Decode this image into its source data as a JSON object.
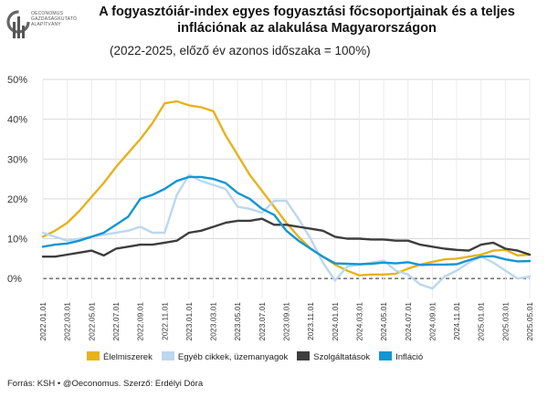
{
  "logo": {
    "lines": [
      "OECONOMUS",
      "GAZDASÁGKUTATÓ",
      "ALAPÍTVÁNY"
    ]
  },
  "header": {
    "title_line1": "A fogyasztóiár-index egyes fogyasztási főcsoportjainak és a teljes",
    "title_line2": "inflációnak az alakulása Magyarországon",
    "subtitle": "(2022-2025, előző év azonos időszaka = 100%)"
  },
  "footer": {
    "source": "Forrás: KSH • @Oeconomus. Szerző: Erdélyi Dóra"
  },
  "chart_data": {
    "type": "line",
    "title": "A fogyasztóiár-index egyes fogyasztási főcsoportjainak és a teljes inflációnak az alakulása Magyarországon",
    "subtitle": "(2022-2025, előző év azonos időszaka = 100%)",
    "xlabel": "",
    "ylabel": "",
    "ylim": [
      -5,
      50
    ],
    "yticks": [
      0,
      10,
      20,
      30,
      40,
      50
    ],
    "ytick_labels": [
      "0%",
      "10%",
      "20%",
      "30%",
      "40%",
      "50%"
    ],
    "grid": true,
    "legend_position": "bottom",
    "x": [
      "2022.01.01",
      "2022.02.01",
      "2022.03.01",
      "2022.04.01",
      "2022.05.01",
      "2022.06.01",
      "2022.07.01",
      "2022.08.01",
      "2022.09.01",
      "2022.10.01",
      "2022.11.01",
      "2022.12.01",
      "2023.01.01",
      "2023.02.01",
      "2023.03.01",
      "2023.04.01",
      "2023.05.01",
      "2023.06.01",
      "2023.07.01",
      "2023.08.01",
      "2023.09.01",
      "2023.10.01",
      "2023.11.01",
      "2023.12.01",
      "2024.01.01",
      "2024.02.01",
      "2024.03.01",
      "2024.04.01",
      "2024.05.01",
      "2024.06.01",
      "2024.07.01",
      "2024.08.01",
      "2024.09.01",
      "2024.10.01",
      "2024.11.01",
      "2024.12.01",
      "2025.01.01",
      "2025.02.01",
      "2025.03.01",
      "2025.04.01",
      "2025.05.01"
    ],
    "tick_labels": [
      "2022.01.01",
      "2022.03.01",
      "2022.05.01",
      "2022.07.01",
      "2022.09.01",
      "2022.11.01",
      "2023.01.01",
      "2023.03.01",
      "2023.05.01",
      "2023.07.01",
      "2023.09.01",
      "2023.11.01",
      "2024.01.01",
      "2024.03.01",
      "2024.05.01",
      "2024.07.01",
      "2024.09.01",
      "2024.11.01",
      "2025.01.01",
      "2025.03.01",
      "2025.05.01"
    ],
    "series": [
      {
        "name": "Élelmiszerek",
        "color": "#E8B21C",
        "values": [
          10.5,
          12,
          14,
          17,
          20.5,
          24,
          28,
          31.5,
          35,
          39,
          44,
          44.5,
          43.5,
          43,
          42,
          36,
          31,
          26,
          22,
          18,
          14,
          10.5,
          7.5,
          5.5,
          3.5,
          2,
          0.8,
          1,
          1,
          1.2,
          2.5,
          3.5,
          4.2,
          4.8,
          5,
          5.5,
          6,
          7,
          7.2,
          5.8,
          6
        ]
      },
      {
        "name": "Egyéb cikkek, üzemanyagok",
        "color": "#BCD7EE",
        "values": [
          11.5,
          10.5,
          9.5,
          10,
          10.5,
          11,
          11.5,
          12,
          13,
          11.5,
          11.5,
          21,
          26,
          24.5,
          23.5,
          22.5,
          18,
          17.5,
          16.5,
          19.5,
          19.5,
          15,
          10,
          4,
          -0.5,
          3,
          3.5,
          4,
          4.5,
          2,
          1,
          -1.5,
          -2.5,
          0.5,
          2,
          4,
          5.5,
          4,
          2,
          0,
          0.5
        ]
      },
      {
        "name": "Szolgáltatások",
        "color": "#3D3D3D",
        "values": [
          5.5,
          5.5,
          6,
          6.5,
          7,
          5.8,
          7.5,
          8,
          8.5,
          8.5,
          9,
          9.5,
          11.5,
          12,
          13,
          14,
          14.5,
          14.5,
          15,
          13.5,
          13.5,
          13,
          12.5,
          12,
          10.5,
          10,
          10,
          9.8,
          9.8,
          9.5,
          9.5,
          8.5,
          8,
          7.5,
          7.2,
          7,
          8.5,
          9,
          7.5,
          7,
          6
        ]
      },
      {
        "name": "Infláció",
        "color": "#1296D4",
        "values": [
          8,
          8.5,
          8.8,
          9.5,
          10.5,
          11.5,
          13.5,
          15.5,
          20,
          21,
          22.5,
          24.5,
          25.5,
          25.5,
          25,
          24,
          21.5,
          20,
          17.5,
          16,
          12,
          9.5,
          7.5,
          5.5,
          3.8,
          3.7,
          3.6,
          3.7,
          4,
          3.8,
          4.1,
          3.4,
          3.5,
          3.5,
          3.6,
          4.6,
          5.5,
          5.6,
          4.8,
          4.3,
          4.4
        ]
      }
    ]
  }
}
